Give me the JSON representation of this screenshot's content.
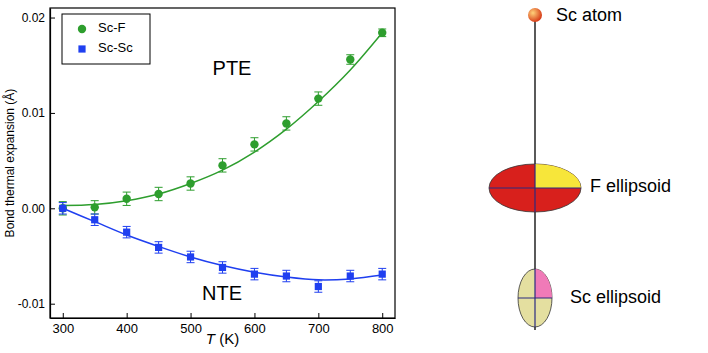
{
  "chart_data": {
    "type": "scatter",
    "x_label": "T (K)",
    "y_label": "Bond thermal expansion (Å)",
    "x": [
      300,
      350,
      400,
      450,
      500,
      550,
      600,
      650,
      700,
      750,
      800
    ],
    "xlim": [
      280,
      820
    ],
    "xticks": [
      300,
      400,
      500,
      600,
      700,
      800
    ],
    "ylim": [
      -0.0115,
      0.021
    ],
    "yticks": [
      {
        "value": -0.01,
        "label": "-0.01"
      },
      {
        "value": 0,
        "label": "0.00"
      },
      {
        "value": 0.01,
        "label": "0.01"
      },
      {
        "value": 0.02,
        "label": "0.02"
      }
    ],
    "grid": false,
    "legend": "top-left",
    "annotations": [
      "PTE",
      "NTE"
    ],
    "series": [
      {
        "name": "Sc-F",
        "color": "#2e9e2e",
        "marker": "circle",
        "values": [
          0.0,
          0.0001,
          0.001,
          0.0015,
          0.0026,
          0.0045,
          0.0067,
          0.0089,
          0.0115,
          0.0156,
          0.0184
        ],
        "errors": [
          0.0007,
          0.0007,
          0.0007,
          0.0007,
          0.0007,
          0.0007,
          0.0007,
          0.0007,
          0.0007,
          0.0005,
          0.0004
        ],
        "fit": [
          0.0003,
          0.0004,
          0.0008,
          0.0015,
          0.0026,
          0.004,
          0.0059,
          0.0083,
          0.0112,
          0.0145,
          0.0184
        ]
      },
      {
        "name": "Sc-Sc",
        "color": "#1f3ff0",
        "marker": "square",
        "values": [
          0.0,
          -0.0012,
          -0.0025,
          -0.0041,
          -0.0051,
          -0.0062,
          -0.0069,
          -0.0071,
          -0.0082,
          -0.0071,
          -0.0069
        ],
        "errors": [
          0.0006,
          0.0006,
          0.0006,
          0.0006,
          0.0006,
          0.0006,
          0.0006,
          0.0006,
          0.0006,
          0.0006,
          0.0006
        ],
        "fit": [
          0.0,
          -0.0014,
          -0.0028,
          -0.004,
          -0.0051,
          -0.006,
          -0.0067,
          -0.0072,
          -0.0075,
          -0.0074,
          -0.007
        ]
      }
    ]
  },
  "diagram": {
    "sc_atom": "Sc atom",
    "f_ellipsoid": "F ellipsoid",
    "sc_ellipsoid": "Sc ellipsoid"
  }
}
